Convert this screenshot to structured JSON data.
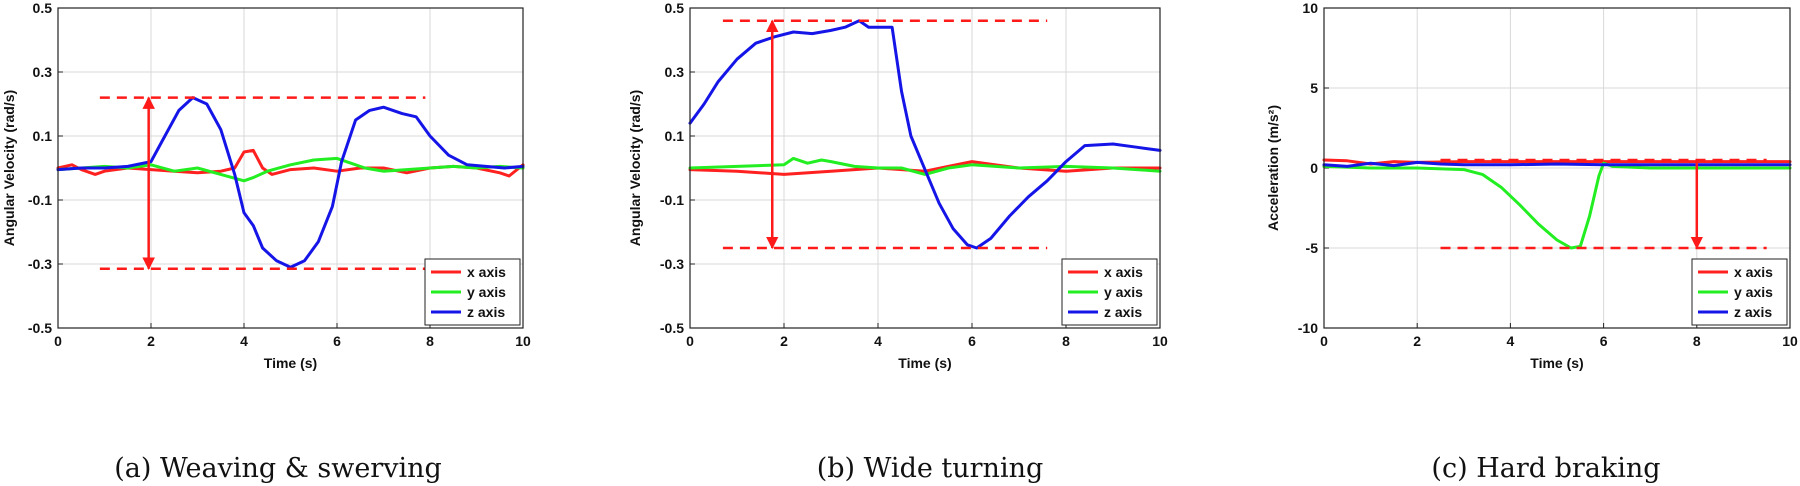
{
  "colors": {
    "x": "#ff2020",
    "y": "#22ee22",
    "z": "#1515e8",
    "marker": "#ff1a1a",
    "grid": "#d9d9d9"
  },
  "chart_data": [
    {
      "type": "line",
      "caption": "(a) Weaving & swerving",
      "xlabel": "Time (s)",
      "ylabel": "Angular Velocity (rad/s)",
      "xlim": [
        0,
        10
      ],
      "ylim": [
        -0.5,
        0.5
      ],
      "xticks": [
        "0",
        "2",
        "4",
        "6",
        "8",
        "10"
      ],
      "yticks": [
        "-0.5",
        "-0.3",
        "-0.1",
        "0.1",
        "0.3",
        "0.5"
      ],
      "grid": true,
      "legend_position": "bottom-right",
      "series": [
        {
          "name": "x axis",
          "color_key": "x",
          "x": [
            0,
            0.3,
            0.5,
            0.8,
            1.0,
            1.5,
            2.0,
            2.5,
            3.0,
            3.5,
            3.8,
            4.0,
            4.2,
            4.4,
            4.6,
            5.0,
            5.5,
            6.0,
            6.5,
            7.0,
            7.5,
            8.0,
            8.5,
            9.0,
            9.5,
            9.7,
            10.0
          ],
          "y": [
            0.0,
            0.01,
            -0.005,
            -0.02,
            -0.01,
            0.0,
            -0.005,
            -0.01,
            -0.015,
            -0.01,
            0.0,
            0.05,
            0.055,
            0.0,
            -0.02,
            -0.005,
            0.0,
            -0.01,
            0.0,
            0.0,
            -0.015,
            0.0,
            0.005,
            0.0,
            -0.015,
            -0.025,
            0.01
          ]
        },
        {
          "name": "y axis",
          "color_key": "y",
          "x": [
            0,
            0.5,
            1.0,
            1.5,
            2.0,
            2.5,
            3.0,
            3.5,
            4.0,
            4.2,
            4.5,
            5.0,
            5.5,
            6.0,
            6.3,
            6.6,
            7.0,
            7.5,
            8.0,
            8.5,
            9.0,
            9.5,
            10.0
          ],
          "y": [
            -0.005,
            0.0,
            0.005,
            0.0,
            0.01,
            -0.01,
            0.0,
            -0.02,
            -0.04,
            -0.03,
            -0.01,
            0.01,
            0.025,
            0.03,
            0.015,
            0.0,
            -0.01,
            -0.005,
            0.0,
            0.005,
            0.0,
            0.005,
            0.0
          ]
        },
        {
          "name": "z axis",
          "color_key": "z",
          "x": [
            0,
            0.5,
            1.0,
            1.5,
            2.0,
            2.3,
            2.6,
            2.9,
            3.2,
            3.5,
            3.8,
            4.0,
            4.2,
            4.4,
            4.7,
            5.0,
            5.3,
            5.6,
            5.9,
            6.1,
            6.4,
            6.7,
            7.0,
            7.4,
            7.7,
            8.0,
            8.4,
            8.8,
            9.2,
            9.6,
            10.0
          ],
          "y": [
            -0.005,
            0.0,
            0.0,
            0.005,
            0.02,
            0.1,
            0.18,
            0.22,
            0.2,
            0.12,
            -0.02,
            -0.14,
            -0.18,
            -0.25,
            -0.29,
            -0.31,
            -0.29,
            -0.23,
            -0.12,
            0.02,
            0.15,
            0.18,
            0.19,
            0.17,
            0.16,
            0.1,
            0.04,
            0.01,
            0.005,
            0.0,
            0.005
          ]
        }
      ],
      "reference_lines": [
        {
          "y": 0.22,
          "x_range": [
            0.9,
            7.9
          ]
        },
        {
          "y": -0.315,
          "x_range": [
            0.9,
            7.9
          ]
        }
      ],
      "arrow": {
        "x": 1.95,
        "y_range": [
          -0.315,
          0.22
        ]
      }
    },
    {
      "type": "line",
      "caption": "(b) Wide turning",
      "xlabel": "Time (s)",
      "ylabel": "Angular Velocity (rad/s)",
      "xlim": [
        0,
        10
      ],
      "ylim": [
        -0.5,
        0.5
      ],
      "xticks": [
        "0",
        "2",
        "4",
        "6",
        "8",
        "10"
      ],
      "yticks": [
        "-0.5",
        "-0.3",
        "-0.1",
        "0.1",
        "0.3",
        "0.5"
      ],
      "grid": true,
      "legend_position": "bottom-right",
      "series": [
        {
          "name": "x axis",
          "color_key": "x",
          "x": [
            0,
            1.0,
            2.0,
            3.0,
            4.0,
            5.0,
            5.5,
            6.0,
            6.5,
            7.0,
            8.0,
            9.0,
            10.0
          ],
          "y": [
            -0.005,
            -0.01,
            -0.02,
            -0.01,
            0.0,
            -0.01,
            0.005,
            0.02,
            0.01,
            0.0,
            -0.01,
            0.0,
            0.0
          ]
        },
        {
          "name": "y axis",
          "color_key": "y",
          "x": [
            0,
            1.0,
            2.0,
            2.2,
            2.5,
            2.8,
            3.0,
            3.5,
            4.0,
            4.5,
            5.0,
            5.5,
            6.0,
            7.0,
            8.0,
            9.0,
            10.0
          ],
          "y": [
            0.0,
            0.005,
            0.01,
            0.03,
            0.015,
            0.025,
            0.02,
            0.005,
            0.0,
            0.0,
            -0.02,
            0.0,
            0.01,
            0.0,
            0.005,
            0.0,
            -0.01
          ]
        },
        {
          "name": "z axis",
          "color_key": "z",
          "x": [
            0,
            0.3,
            0.6,
            1.0,
            1.4,
            1.8,
            2.2,
            2.6,
            3.0,
            3.3,
            3.6,
            3.8,
            4.0,
            4.3,
            4.5,
            4.7,
            4.9,
            5.1,
            5.3,
            5.6,
            5.9,
            6.1,
            6.4,
            6.8,
            7.2,
            7.6,
            8.0,
            8.4,
            9.0,
            9.5,
            10.0
          ],
          "y": [
            0.14,
            0.2,
            0.27,
            0.34,
            0.39,
            0.41,
            0.425,
            0.42,
            0.43,
            0.44,
            0.46,
            0.44,
            0.44,
            0.44,
            0.24,
            0.1,
            0.03,
            -0.04,
            -0.11,
            -0.19,
            -0.24,
            -0.25,
            -0.22,
            -0.15,
            -0.09,
            -0.04,
            0.02,
            0.07,
            0.075,
            0.065,
            0.055
          ]
        }
      ],
      "reference_lines": [
        {
          "y": 0.46,
          "x_range": [
            0.7,
            7.6
          ]
        },
        {
          "y": -0.25,
          "x_range": [
            0.7,
            7.6
          ]
        }
      ],
      "arrow": {
        "x": 1.75,
        "y_range": [
          -0.25,
          0.46
        ]
      }
    },
    {
      "type": "line",
      "caption": "(c) Hard braking",
      "xlabel": "Time (s)",
      "ylabel": "Acceleration (m/s²)",
      "xlim": [
        0,
        10
      ],
      "ylim": [
        -10,
        10
      ],
      "xticks": [
        "0",
        "2",
        "4",
        "6",
        "8",
        "10"
      ],
      "yticks": [
        "-10",
        "-5",
        "0",
        "5",
        "10"
      ],
      "grid": true,
      "legend_position": "bottom-right",
      "series": [
        {
          "name": "x axis",
          "color_key": "x",
          "x": [
            0,
            0.5,
            1.0,
            1.5,
            2.0,
            3.0,
            4.0,
            5.0,
            6.0,
            7.0,
            8.0,
            9.0,
            10.0
          ],
          "y": [
            0.5,
            0.45,
            0.25,
            0.4,
            0.35,
            0.4,
            0.4,
            0.4,
            0.4,
            0.4,
            0.4,
            0.4,
            0.4
          ]
        },
        {
          "name": "y axis",
          "color_key": "y",
          "x": [
            0,
            1.0,
            2.0,
            3.0,
            3.4,
            3.8,
            4.2,
            4.6,
            5.0,
            5.3,
            5.5,
            5.7,
            5.9,
            6.0,
            6.2,
            7.0,
            8.0,
            9.0,
            10.0
          ],
          "y": [
            0.1,
            0.0,
            0.0,
            -0.1,
            -0.4,
            -1.2,
            -2.3,
            -3.5,
            -4.5,
            -5.0,
            -4.9,
            -3.0,
            -0.5,
            0.3,
            0.1,
            0.0,
            0.0,
            0.0,
            0.0
          ]
        },
        {
          "name": "z axis",
          "color_key": "z",
          "x": [
            0,
            0.5,
            1.0,
            1.5,
            2.0,
            2.5,
            3.0,
            4.0,
            5.0,
            6.0,
            7.0,
            8.0,
            9.0,
            10.0
          ],
          "y": [
            0.2,
            0.1,
            0.3,
            0.15,
            0.35,
            0.25,
            0.2,
            0.2,
            0.25,
            0.2,
            0.2,
            0.2,
            0.2,
            0.2
          ]
        }
      ],
      "reference_lines": [
        {
          "y": 0.5,
          "x_range": [
            2.5,
            9.5
          ]
        },
        {
          "y": -5.0,
          "x_range": [
            2.5,
            9.5
          ]
        }
      ],
      "arrow": {
        "x": 8.0,
        "y_range": [
          -5.0,
          0.5
        ]
      }
    }
  ]
}
